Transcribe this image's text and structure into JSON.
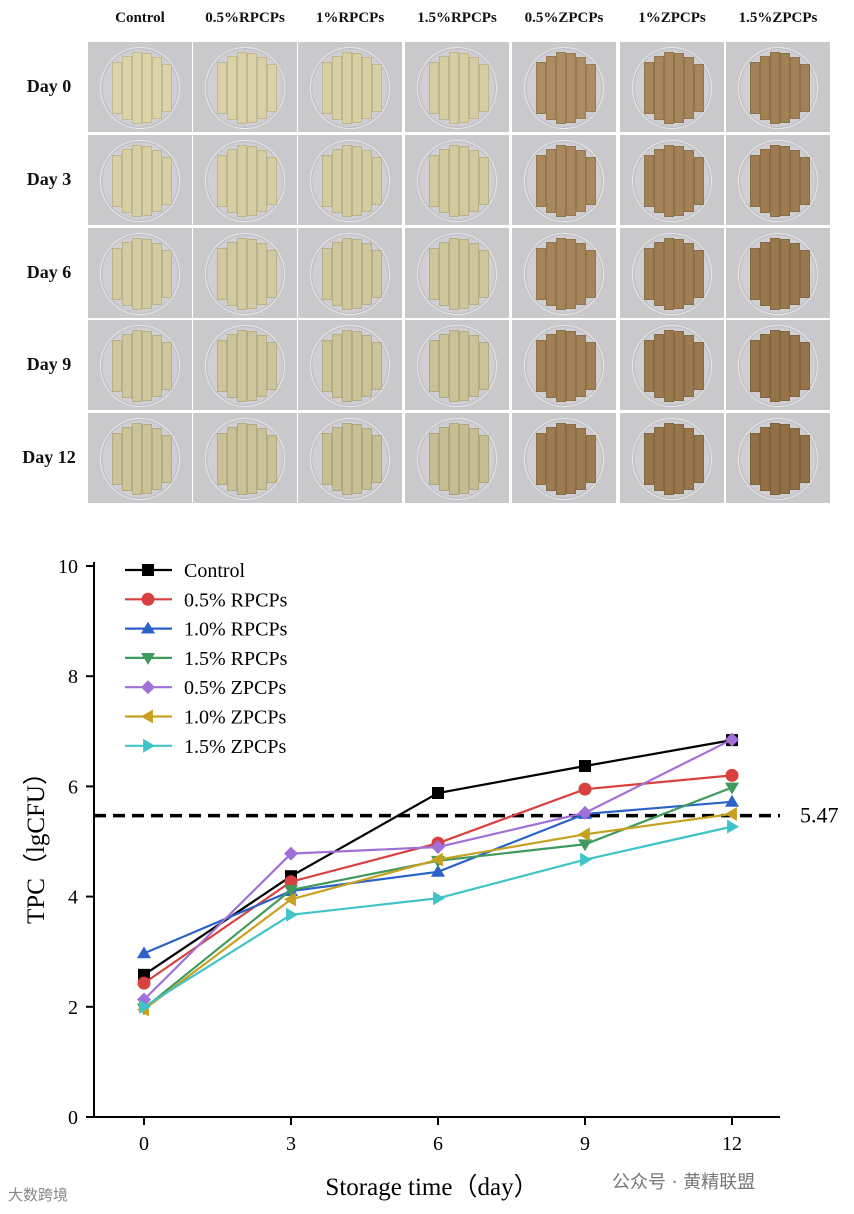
{
  "photo_grid": {
    "columns": [
      "Control",
      "0.5%RPCPs",
      "1%RPCPs",
      "1.5%RPCPs",
      "0.5%ZPCPs",
      "1%ZPCPs",
      "1.5%ZPCPs"
    ],
    "rows": [
      "Day 0",
      "Day 3",
      "Day 6",
      "Day 9",
      "Day 12"
    ]
  },
  "chart_data": {
    "type": "line",
    "xlabel": "Storage time（day）",
    "ylabel": "TPC（lgCFU）",
    "x": [
      0,
      3,
      6,
      9,
      12
    ],
    "xticks": [
      "0",
      "3",
      "6",
      "9",
      "12"
    ],
    "yticks": [
      "0",
      "2",
      "4",
      "6",
      "8",
      "10"
    ],
    "xlim": [
      -1.0,
      13.1
    ],
    "ylim": [
      0,
      10
    ],
    "legend_position": "top-left",
    "reference_line": {
      "value": 5.47,
      "label": "5.47",
      "style": "dashed",
      "color": "#000000"
    },
    "series": [
      {
        "name": "Control",
        "color": "#000000",
        "marker": "square",
        "values": [
          2.58,
          4.37,
          5.88,
          6.37,
          6.84
        ]
      },
      {
        "name": "0.5% RPCPs",
        "color": "#d94040",
        "marker": "circle",
        "values": [
          2.43,
          4.27,
          4.97,
          5.95,
          6.2
        ]
      },
      {
        "name": "1.0% RPCPs",
        "color": "#2a62c8",
        "marker": "triangle-up",
        "values": [
          2.97,
          4.1,
          4.45,
          5.5,
          5.72
        ]
      },
      {
        "name": "1.5% RPCPs",
        "color": "#3f9a5c",
        "marker": "triangle-down",
        "values": [
          1.97,
          4.12,
          4.65,
          4.95,
          5.98
        ]
      },
      {
        "name": "0.5% ZPCPs",
        "color": "#a070d8",
        "marker": "diamond",
        "values": [
          2.13,
          4.78,
          4.9,
          5.52,
          6.85
        ]
      },
      {
        "name": "1.0% ZPCPs",
        "color": "#c8a020",
        "marker": "triangle-left",
        "values": [
          1.95,
          3.95,
          4.67,
          5.13,
          5.5
        ]
      },
      {
        "name": "1.5% ZPCPs",
        "color": "#40c4c8",
        "marker": "triangle-right",
        "values": [
          2.0,
          3.67,
          3.97,
          4.67,
          5.27
        ]
      }
    ]
  },
  "watermarks": {
    "left": "大数跨境",
    "right": "公众号 · 黄精联盟"
  }
}
